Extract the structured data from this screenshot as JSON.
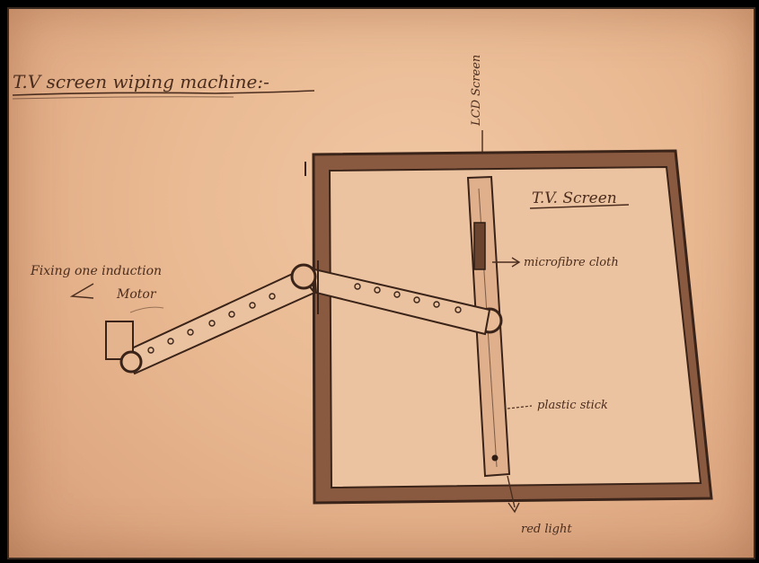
{
  "title": "T.V screen wiping machine:-",
  "labels": {
    "lcd_screen": "LCD Screen",
    "tv_screen": "T.V. Screen",
    "microfibre_cloth": "microfibre cloth",
    "plastic_stick": "plastic stick",
    "red_light": "red light",
    "motor_line1": "Fixing one induction",
    "motor_line2": "Motor"
  },
  "colors": {
    "paper": "#e9b992",
    "pencil": "#4a2d1e"
  }
}
